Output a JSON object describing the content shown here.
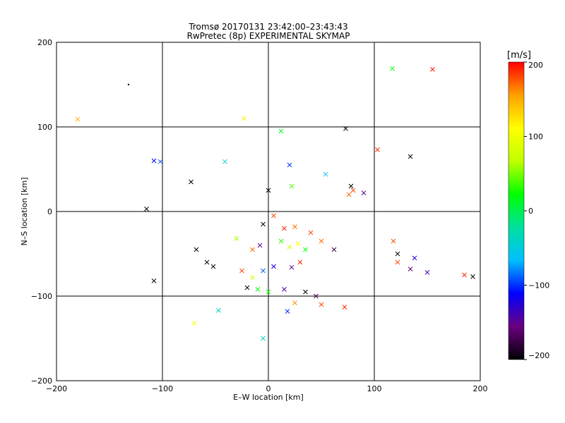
{
  "chart_data": {
    "type": "scatter",
    "title": "Tromsø 20170131 23:42:00–23:43:43",
    "subtitle": "RwPretec (8p) EXPERIMENTAL SKYMAP",
    "xlabel": "E–W location [km]",
    "ylabel": "N–S location [km]",
    "xlim": [
      -200,
      200
    ],
    "ylim": [
      -200,
      200
    ],
    "xticks": [
      -200,
      -100,
      0,
      100,
      200
    ],
    "yticks": [
      -200,
      -100,
      0,
      100,
      200
    ],
    "x_tick_labels": [
      "−200",
      "−100",
      "0",
      "100",
      "200"
    ],
    "y_tick_labels": [
      "−200",
      "−100",
      "0",
      "100",
      "200"
    ],
    "grid": true,
    "colorbar": {
      "label": "[m/s]",
      "range": [
        -200,
        200
      ],
      "ticks": [
        200,
        100,
        0,
        -100,
        -200
      ],
      "tick_labels": [
        "200",
        "100",
        "0",
        "−100",
        "−200"
      ],
      "colors": [
        "#000000",
        "#6a0080",
        "#0000ff",
        "#00c0ff",
        "#00e0a0",
        "#00ff00",
        "#c0ff00",
        "#ffff00",
        "#ffa000",
        "#ff0000"
      ]
    },
    "markers": {
      "small": "dot",
      "large": "x"
    },
    "points": [
      {
        "x": -180,
        "y": 109,
        "v": 150,
        "m": "x"
      },
      {
        "x": 155,
        "y": 168,
        "v": 195,
        "m": "x"
      },
      {
        "x": 117,
        "y": 169,
        "v": 20,
        "m": "x"
      },
      {
        "x": -132,
        "y": 150,
        "v": -200,
        "m": "d"
      },
      {
        "x": -23,
        "y": 110,
        "v": 120,
        "m": "x"
      },
      {
        "x": 12,
        "y": 95,
        "v": 10,
        "m": "x"
      },
      {
        "x": 73,
        "y": 98,
        "v": -200,
        "m": "x"
      },
      {
        "x": 103,
        "y": 73,
        "v": 190,
        "m": "x"
      },
      {
        "x": 134,
        "y": 65,
        "v": -200,
        "m": "x"
      },
      {
        "x": -108,
        "y": 60,
        "v": -110,
        "m": "x"
      },
      {
        "x": -102,
        "y": 59,
        "v": -90,
        "m": "x"
      },
      {
        "x": -41,
        "y": 59,
        "v": -40,
        "m": "x"
      },
      {
        "x": -73,
        "y": 35,
        "v": -200,
        "m": "x"
      },
      {
        "x": -115,
        "y": 3,
        "v": -200,
        "m": "x"
      },
      {
        "x": -108,
        "y": -82,
        "v": -200,
        "m": "x"
      },
      {
        "x": -47,
        "y": -117,
        "v": -40,
        "m": "x"
      },
      {
        "x": -70,
        "y": -132,
        "v": 110,
        "m": "x"
      },
      {
        "x": -5,
        "y": -150,
        "v": -40,
        "m": "x"
      },
      {
        "x": 18,
        "y": -118,
        "v": -100,
        "m": "x"
      },
      {
        "x": 72,
        "y": -113,
        "v": 190,
        "m": "x"
      },
      {
        "x": 185,
        "y": -75,
        "v": 190,
        "m": "x"
      },
      {
        "x": 193,
        "y": -77,
        "v": -200,
        "m": "x"
      },
      {
        "x": 122,
        "y": -50,
        "v": -200,
        "m": "x"
      },
      {
        "x": 138,
        "y": -55,
        "v": -120,
        "m": "x"
      },
      {
        "x": 150,
        "y": -72,
        "v": -140,
        "m": "x"
      },
      {
        "x": 134,
        "y": -68,
        "v": -160,
        "m": "x"
      },
      {
        "x": 78,
        "y": 30,
        "v": -200,
        "m": "x"
      },
      {
        "x": 80,
        "y": 25,
        "v": 180,
        "m": "x"
      },
      {
        "x": 76,
        "y": 20,
        "v": 170,
        "m": "x"
      },
      {
        "x": 90,
        "y": 22,
        "v": -150,
        "m": "x"
      },
      {
        "x": 54,
        "y": 44,
        "v": -60,
        "m": "x"
      },
      {
        "x": 20,
        "y": 55,
        "v": -100,
        "m": "x"
      },
      {
        "x": 22,
        "y": 30,
        "v": 40,
        "m": "x"
      },
      {
        "x": 0,
        "y": 25,
        "v": -200,
        "m": "x"
      },
      {
        "x": -5,
        "y": -15,
        "v": -200,
        "m": "x"
      },
      {
        "x": 5,
        "y": -5,
        "v": 180,
        "m": "x"
      },
      {
        "x": 15,
        "y": -20,
        "v": 190,
        "m": "x"
      },
      {
        "x": 25,
        "y": -18,
        "v": 170,
        "m": "x"
      },
      {
        "x": 40,
        "y": -25,
        "v": 180,
        "m": "x"
      },
      {
        "x": 12,
        "y": -35,
        "v": 30,
        "m": "x"
      },
      {
        "x": 20,
        "y": -42,
        "v": 80,
        "m": "x"
      },
      {
        "x": 28,
        "y": -38,
        "v": 110,
        "m": "x"
      },
      {
        "x": 35,
        "y": -45,
        "v": 20,
        "m": "x"
      },
      {
        "x": 50,
        "y": -35,
        "v": 170,
        "m": "x"
      },
      {
        "x": 62,
        "y": -45,
        "v": -180,
        "m": "x"
      },
      {
        "x": 30,
        "y": -60,
        "v": 190,
        "m": "x"
      },
      {
        "x": 22,
        "y": -66,
        "v": -150,
        "m": "x"
      },
      {
        "x": 5,
        "y": -65,
        "v": -120,
        "m": "x"
      },
      {
        "x": -5,
        "y": -70,
        "v": -90,
        "m": "x"
      },
      {
        "x": -15,
        "y": -78,
        "v": 80,
        "m": "x"
      },
      {
        "x": -25,
        "y": -70,
        "v": 180,
        "m": "x"
      },
      {
        "x": -20,
        "y": -90,
        "v": -200,
        "m": "x"
      },
      {
        "x": -10,
        "y": -92,
        "v": 20,
        "m": "x"
      },
      {
        "x": 0,
        "y": -95,
        "v": 30,
        "m": "x"
      },
      {
        "x": 15,
        "y": -92,
        "v": -140,
        "m": "x"
      },
      {
        "x": 35,
        "y": -95,
        "v": -200,
        "m": "x"
      },
      {
        "x": 45,
        "y": -100,
        "v": -170,
        "m": "x"
      },
      {
        "x": 50,
        "y": -110,
        "v": 180,
        "m": "x"
      },
      {
        "x": 25,
        "y": -108,
        "v": 160,
        "m": "x"
      },
      {
        "x": -52,
        "y": -65,
        "v": -200,
        "m": "x"
      },
      {
        "x": -58,
        "y": -60,
        "v": -200,
        "m": "x"
      },
      {
        "x": -68,
        "y": -45,
        "v": -200,
        "m": "x"
      },
      {
        "x": -15,
        "y": -45,
        "v": 170,
        "m": "x"
      },
      {
        "x": -30,
        "y": -32,
        "v": 60,
        "m": "x"
      },
      {
        "x": -8,
        "y": -40,
        "v": -150,
        "m": "x"
      },
      {
        "x": 122,
        "y": -60,
        "v": 180,
        "m": "x"
      },
      {
        "x": 118,
        "y": -35,
        "v": 180,
        "m": "x"
      }
    ]
  }
}
